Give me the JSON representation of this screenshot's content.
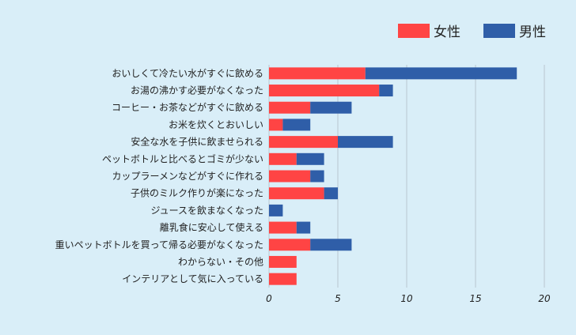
{
  "chart_data": {
    "type": "bar",
    "orientation": "horizontal",
    "stacked": true,
    "categories": [
      "おいしくて冷たい水がすぐに飲める",
      "お湯の沸かす必要がなくなった",
      "コーヒー・お茶などがすぐに飲める",
      "お米を炊くとおいしい",
      "安全な水を子供に飲ませられる",
      "ペットボトルと比べるとゴミが少ない",
      "カップラーメンなどがすぐに作れる",
      "子供のミルク作りが楽になった",
      "ジュースを飲まなくなった",
      "離乳食に安心して使える",
      "重いペットボトルを買って帰る必要がなくなった",
      "わからない・その他",
      "インテリアとして気に入っている"
    ],
    "series": [
      {
        "name": "女性",
        "color": "#ff4444",
        "values": [
          7,
          8,
          3,
          1,
          5,
          2,
          3,
          4,
          0,
          2,
          3,
          2,
          2
        ]
      },
      {
        "name": "男性",
        "color": "#2f5ea8",
        "values": [
          11,
          1,
          3,
          2,
          4,
          2,
          1,
          1,
          1,
          1,
          3,
          0,
          0
        ]
      }
    ],
    "xlim": [
      0,
      20
    ],
    "xticks": [
      0,
      5,
      10,
      15,
      20
    ],
    "grid": true,
    "legend_position": "top-right",
    "title": "",
    "xlabel": "",
    "ylabel": ""
  }
}
